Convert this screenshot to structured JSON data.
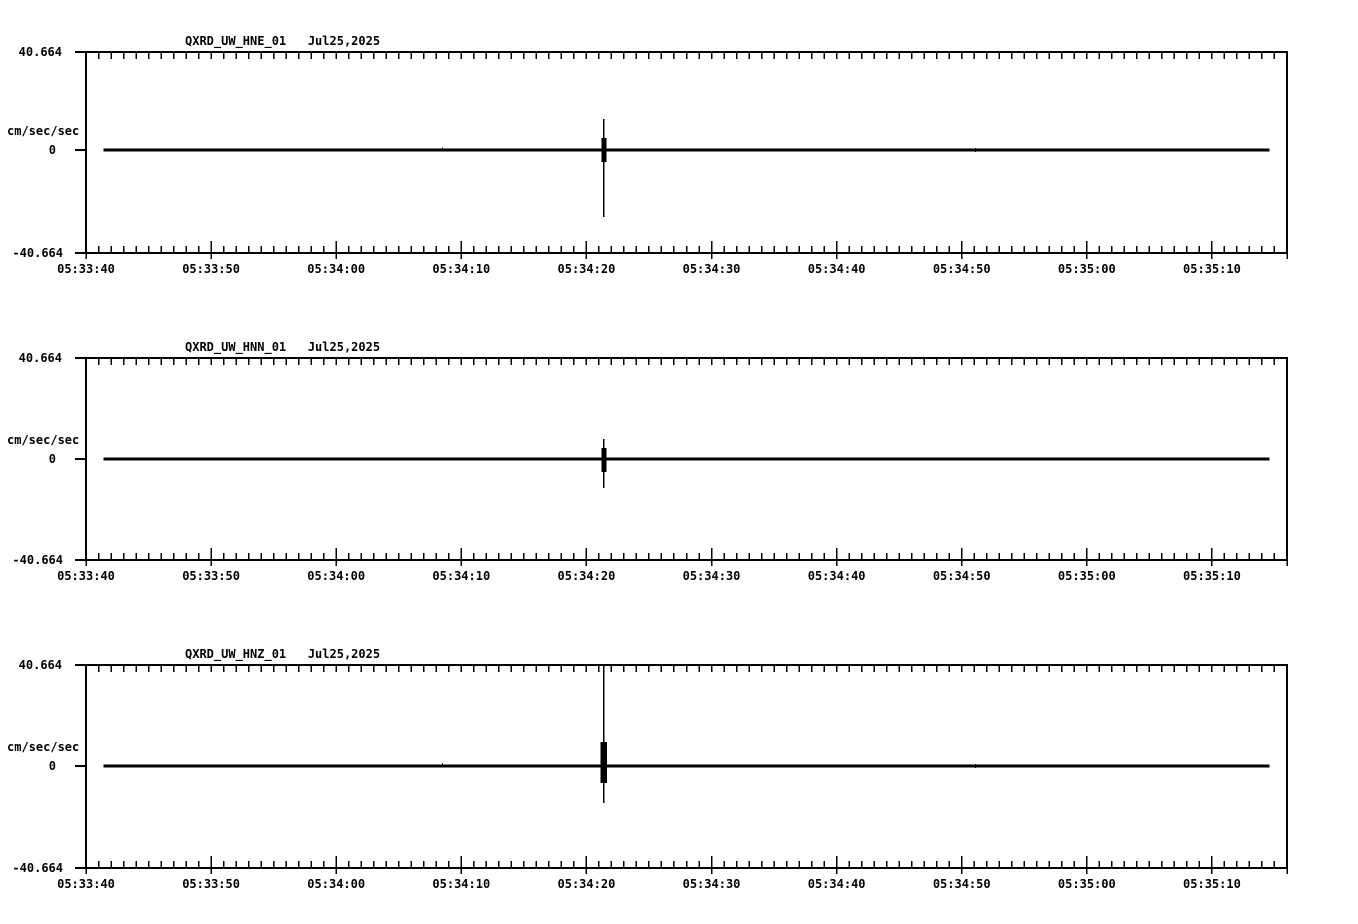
{
  "figure": {
    "background_color": "#ffffff",
    "ink_color": "#000000",
    "description": "Three-channel strong-motion accelerogram strip plot"
  },
  "chart_data": {
    "type": "line",
    "kind": "seismic-waveform",
    "x_axis": {
      "start": "05:33:40",
      "end": "05:35:16",
      "major_tick_sec": 10,
      "minor_tick_sec": 1,
      "tick_labels": [
        "05:33:40",
        "05:33:50",
        "05:34:00",
        "05:34:10",
        "05:34:20",
        "05:34:30",
        "05:34:40",
        "05:34:50",
        "05:35:00",
        "05:35:10"
      ]
    },
    "panels": [
      {
        "title": "QXRD_UW_HNE_01   Jul25,2025",
        "station_channel": "QXRD_UW_HNE_01",
        "date": "Jul25,2025",
        "ylabel": "cm/sec/sec",
        "ymax_label": "40.664",
        "zero_label": "0",
        "ymin_label": "-40.664",
        "ylim": [
          -40.664,
          40.664
        ],
        "baseline": 0,
        "trace_start": "05:33:41.4",
        "trace_end": "05:35:14.6",
        "events": [
          {
            "time": "05:34:08.5",
            "up": 1.0,
            "down": 0.6
          },
          {
            "time": "05:34:21.4",
            "up": 12.5,
            "down": 27.1,
            "body_up": 4.9,
            "body_down": 4.9
          },
          {
            "time": "05:34:51.1",
            "up": 0.8,
            "down": 0.8
          }
        ]
      },
      {
        "title": "QXRD_UW_HNN_01   Jul25,2025",
        "station_channel": "QXRD_UW_HNN_01",
        "date": "Jul25,2025",
        "ylabel": "cm/sec/sec",
        "ymax_label": "40.664",
        "zero_label": "0",
        "ymin_label": "-40.664",
        "ylim": [
          -40.664,
          40.664
        ],
        "baseline": 0,
        "trace_start": "05:33:41.4",
        "trace_end": "05:35:14.6",
        "events": [
          {
            "time": "05:34:21.4",
            "up": 8.1,
            "down": 11.7,
            "body_up": 4.4,
            "body_down": 5.2
          },
          {
            "time": "05:34:51.1",
            "up": 0.7,
            "down": 0.7
          }
        ]
      },
      {
        "title": "QXRD_UW_HNZ_01   Jul25,2025",
        "station_channel": "QXRD_UW_HNZ_01",
        "date": "Jul25,2025",
        "ylabel": "cm/sec/sec",
        "ymax_label": "40.664",
        "zero_label": "0",
        "ymin_label": "-40.664",
        "ylim": [
          -40.664,
          40.664
        ],
        "baseline": 0,
        "trace_start": "05:33:41.4",
        "trace_end": "05:35:14.6",
        "events": [
          {
            "time": "05:34:08.5",
            "up": 1.2,
            "down": 0.5
          },
          {
            "time": "05:34:21.4",
            "up": 40.5,
            "down": 14.8,
            "body_up": 9.6,
            "body_down": 6.8
          },
          {
            "time": "05:34:48.4",
            "up": 0.5,
            "down": 0.4
          },
          {
            "time": "05:34:50.1",
            "up": 0.5,
            "down": 0.4
          },
          {
            "time": "05:34:51.1",
            "up": 0.8,
            "down": 0.8
          },
          {
            "time": "05:35:08.8",
            "up": 0.5,
            "down": 0.3
          },
          {
            "time": "05:35:09.5",
            "up": 0.5,
            "down": 0.3
          },
          {
            "time": "05:35:10.7",
            "up": 0.5,
            "down": 0.3
          }
        ]
      }
    ]
  }
}
